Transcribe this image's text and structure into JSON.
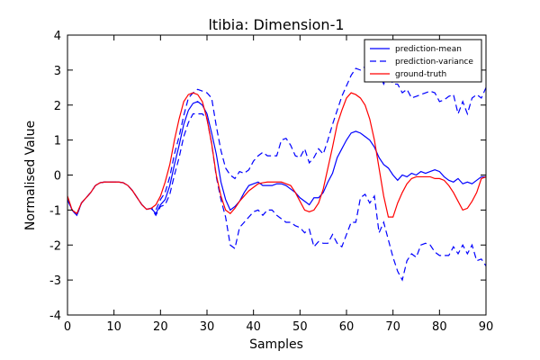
{
  "chart_data": {
    "type": "line",
    "title": "ltibia: Dimension-1",
    "xlabel": "Samples",
    "ylabel": "Normalised Value",
    "xlim": [
      0,
      90
    ],
    "ylim": [
      -4,
      4
    ],
    "xticks": [
      0,
      10,
      20,
      30,
      40,
      50,
      60,
      70,
      80,
      90
    ],
    "yticks": [
      -4,
      -3,
      -2,
      -1,
      0,
      1,
      2,
      3,
      4
    ],
    "grid": false,
    "legend_position": "top-right",
    "series": [
      {
        "name": "prediction-mean",
        "color": "#0000ff",
        "dash": "solid",
        "x": [
          0,
          1,
          2,
          3,
          4,
          5,
          6,
          7,
          8,
          9,
          10,
          11,
          12,
          13,
          14,
          15,
          16,
          17,
          18,
          19,
          20,
          21,
          22,
          23,
          24,
          25,
          26,
          27,
          28,
          29,
          30,
          31,
          32,
          33,
          34,
          35,
          36,
          37,
          38,
          39,
          40,
          41,
          42,
          43,
          44,
          45,
          46,
          47,
          48,
          49,
          50,
          51,
          52,
          53,
          54,
          55,
          56,
          57,
          58,
          59,
          60,
          61,
          62,
          63,
          64,
          65,
          66,
          67,
          68,
          69,
          70,
          71,
          72,
          73,
          74,
          75,
          76,
          77,
          78,
          79,
          80,
          81,
          82,
          83,
          84,
          85,
          86,
          87,
          88,
          89,
          90
        ],
        "y": [
          -0.7,
          -1.0,
          -1.15,
          -0.8,
          -0.65,
          -0.5,
          -0.3,
          -0.22,
          -0.2,
          -0.2,
          -0.2,
          -0.2,
          -0.22,
          -0.3,
          -0.45,
          -0.65,
          -0.85,
          -0.98,
          -0.95,
          -1.1,
          -0.85,
          -0.7,
          -0.3,
          0.3,
          0.85,
          1.45,
          1.85,
          2.05,
          2.1,
          2.0,
          1.75,
          1.2,
          0.6,
          -0.2,
          -0.7,
          -1.0,
          -0.9,
          -0.75,
          -0.5,
          -0.3,
          -0.25,
          -0.2,
          -0.3,
          -0.3,
          -0.3,
          -0.25,
          -0.25,
          -0.3,
          -0.4,
          -0.5,
          -0.65,
          -0.75,
          -0.85,
          -0.65,
          -0.65,
          -0.5,
          -0.2,
          0.05,
          0.5,
          0.75,
          1.0,
          1.2,
          1.25,
          1.2,
          1.1,
          1.0,
          0.8,
          0.5,
          0.3,
          0.2,
          0.0,
          -0.15,
          0.0,
          -0.05,
          0.05,
          0.0,
          0.1,
          0.05,
          0.1,
          0.15,
          0.1,
          -0.05,
          -0.15,
          -0.2,
          -0.1,
          -0.25,
          -0.2,
          -0.25,
          -0.15,
          -0.05,
          -0.05
        ]
      },
      {
        "name": "prediction-variance",
        "color": "#0000ff",
        "dash": "dashed",
        "upper": {
          "x": [
            0,
            1,
            2,
            3,
            4,
            5,
            6,
            7,
            8,
            9,
            10,
            11,
            12,
            13,
            14,
            15,
            16,
            17,
            18,
            19,
            20,
            21,
            22,
            23,
            24,
            25,
            26,
            27,
            28,
            29,
            30,
            31,
            32,
            33,
            34,
            35,
            36,
            37,
            38,
            39,
            40,
            41,
            42,
            43,
            44,
            45,
            46,
            47,
            48,
            49,
            50,
            51,
            52,
            53,
            54,
            55,
            56,
            57,
            58,
            59,
            60,
            61,
            62,
            63,
            64,
            65,
            66,
            67,
            68,
            69,
            70,
            71,
            72,
            73,
            74,
            75,
            76,
            77,
            78,
            79,
            80,
            81,
            82,
            83,
            84,
            85,
            86,
            87,
            88,
            89,
            90
          ],
          "y": [
            -0.7,
            -1.0,
            -1.15,
            -0.8,
            -0.65,
            -0.5,
            -0.3,
            -0.22,
            -0.2,
            -0.2,
            -0.2,
            -0.2,
            -0.22,
            -0.3,
            -0.45,
            -0.65,
            -0.85,
            -0.98,
            -0.95,
            -1.0,
            -0.7,
            -0.5,
            -0.05,
            0.6,
            1.1,
            1.7,
            2.2,
            2.35,
            2.45,
            2.4,
            2.35,
            2.2,
            1.4,
            0.7,
            0.2,
            0.0,
            -0.1,
            0.1,
            0.05,
            0.15,
            0.4,
            0.55,
            0.65,
            0.55,
            0.55,
            0.55,
            1.0,
            1.05,
            0.85,
            0.55,
            0.5,
            0.75,
            0.35,
            0.5,
            0.75,
            0.6,
            1.0,
            1.45,
            1.85,
            2.25,
            2.55,
            2.85,
            3.05,
            3.0,
            3.1,
            3.35,
            3.35,
            2.95,
            2.6,
            2.9,
            2.6,
            2.6,
            2.35,
            2.45,
            2.2,
            2.25,
            2.3,
            2.35,
            2.4,
            2.35,
            2.1,
            2.15,
            2.25,
            2.3,
            1.75,
            2.1,
            1.75,
            2.2,
            2.3,
            2.2,
            2.5
          ]
        },
        "lower": {
          "x": [
            0,
            1,
            2,
            3,
            4,
            5,
            6,
            7,
            8,
            9,
            10,
            11,
            12,
            13,
            14,
            15,
            16,
            17,
            18,
            19,
            20,
            21,
            22,
            23,
            24,
            25,
            26,
            27,
            28,
            29,
            30,
            31,
            32,
            33,
            34,
            35,
            36,
            37,
            38,
            39,
            40,
            41,
            42,
            43,
            44,
            45,
            46,
            47,
            48,
            49,
            50,
            51,
            52,
            53,
            54,
            55,
            56,
            57,
            58,
            59,
            60,
            61,
            62,
            63,
            64,
            65,
            66,
            67,
            68,
            69,
            70,
            71,
            72,
            73,
            74,
            75,
            76,
            77,
            78,
            79,
            80,
            81,
            82,
            83,
            84,
            85,
            86,
            87,
            88,
            89,
            90
          ],
          "y": [
            -0.7,
            -1.0,
            -1.15,
            -0.8,
            -0.65,
            -0.5,
            -0.3,
            -0.22,
            -0.2,
            -0.2,
            -0.2,
            -0.2,
            -0.22,
            -0.3,
            -0.45,
            -0.65,
            -0.85,
            -0.98,
            -0.95,
            -1.15,
            -0.9,
            -0.85,
            -0.55,
            0.0,
            0.5,
            1.1,
            1.5,
            1.75,
            1.75,
            1.75,
            1.6,
            0.9,
            -0.05,
            -0.7,
            -1.2,
            -2.0,
            -2.1,
            -1.5,
            -1.35,
            -1.2,
            -1.05,
            -1.0,
            -1.15,
            -1.0,
            -1.0,
            -1.15,
            -1.25,
            -1.35,
            -1.35,
            -1.45,
            -1.5,
            -1.65,
            -1.55,
            -2.05,
            -1.9,
            -1.95,
            -1.95,
            -1.7,
            -1.95,
            -2.05,
            -1.7,
            -1.35,
            -1.35,
            -0.65,
            -0.55,
            -0.8,
            -0.6,
            -1.65,
            -1.35,
            -1.85,
            -2.35,
            -2.75,
            -3.0,
            -2.45,
            -2.25,
            -2.35,
            -2.0,
            -1.95,
            -2.0,
            -2.2,
            -2.3,
            -2.3,
            -2.3,
            -2.05,
            -2.25,
            -2.0,
            -2.25,
            -2.0,
            -2.45,
            -2.4,
            -2.6
          ]
        }
      },
      {
        "name": "ground-truth",
        "color": "#ff0000",
        "dash": "solid",
        "x": [
          0,
          1,
          2,
          3,
          4,
          5,
          6,
          7,
          8,
          9,
          10,
          11,
          12,
          13,
          14,
          15,
          16,
          17,
          18,
          19,
          20,
          21,
          22,
          23,
          24,
          25,
          26,
          27,
          28,
          29,
          30,
          31,
          32,
          33,
          34,
          35,
          36,
          37,
          38,
          39,
          40,
          41,
          42,
          43,
          44,
          45,
          46,
          47,
          48,
          49,
          50,
          51,
          52,
          53,
          54,
          55,
          56,
          57,
          58,
          59,
          60,
          61,
          62,
          63,
          64,
          65,
          66,
          67,
          68,
          69,
          70,
          71,
          72,
          73,
          74,
          75,
          76,
          77,
          78,
          79,
          80,
          81,
          82,
          83,
          84,
          85,
          86,
          87,
          88,
          89,
          90
        ],
        "y": [
          -0.6,
          -1.0,
          -1.1,
          -0.8,
          -0.65,
          -0.5,
          -0.3,
          -0.22,
          -0.2,
          -0.2,
          -0.2,
          -0.2,
          -0.22,
          -0.3,
          -0.45,
          -0.65,
          -0.85,
          -0.98,
          -0.95,
          -0.85,
          -0.6,
          -0.2,
          0.3,
          1.0,
          1.6,
          2.1,
          2.3,
          2.35,
          2.3,
          2.1,
          1.6,
          0.9,
          0.0,
          -0.6,
          -1.0,
          -1.1,
          -0.95,
          -0.75,
          -0.6,
          -0.45,
          -0.35,
          -0.25,
          -0.22,
          -0.2,
          -0.2,
          -0.2,
          -0.2,
          -0.25,
          -0.3,
          -0.5,
          -0.75,
          -1.0,
          -1.05,
          -1.0,
          -0.8,
          -0.4,
          0.2,
          0.8,
          1.45,
          1.85,
          2.2,
          2.35,
          2.3,
          2.2,
          2.0,
          1.6,
          1.0,
          0.2,
          -0.6,
          -1.2,
          -1.2,
          -0.8,
          -0.5,
          -0.25,
          -0.1,
          -0.05,
          -0.05,
          -0.05,
          -0.05,
          -0.1,
          -0.1,
          -0.15,
          -0.3,
          -0.5,
          -0.75,
          -1.0,
          -0.95,
          -0.75,
          -0.5,
          -0.1,
          -0.05
        ]
      }
    ]
  }
}
